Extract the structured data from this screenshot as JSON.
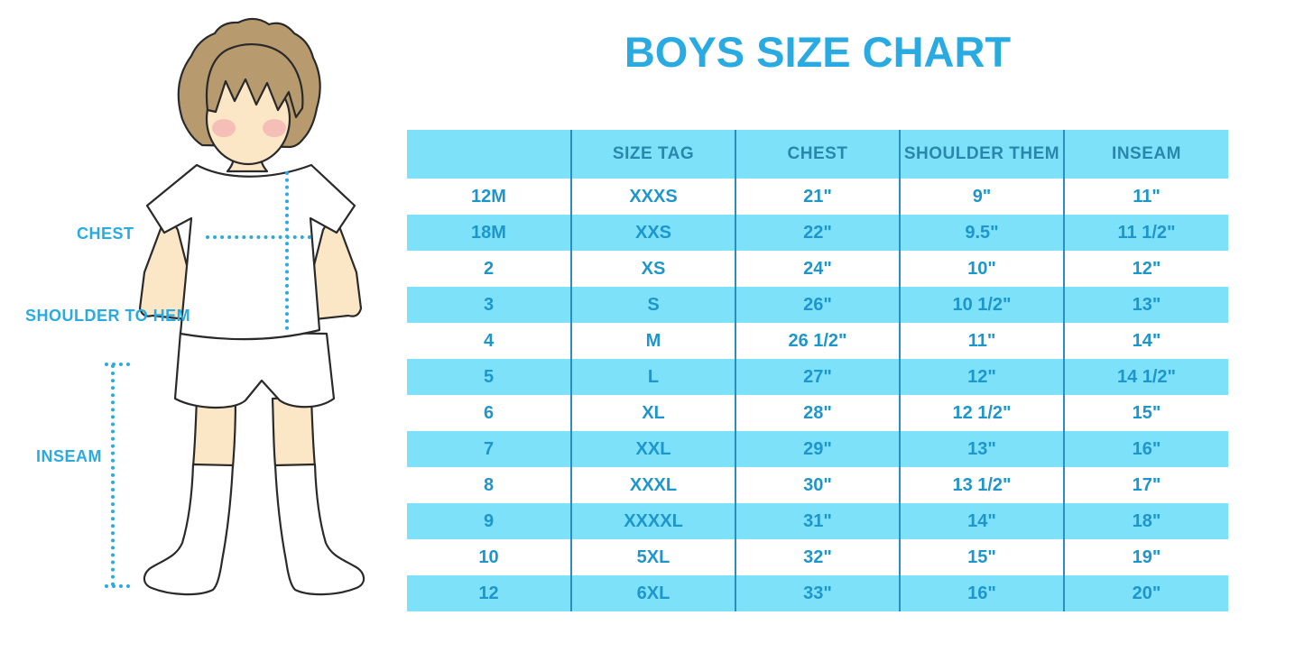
{
  "title": "BOYS SIZE CHART",
  "diagram": {
    "figure": "boy-illustration",
    "labels": {
      "chest": "CHEST",
      "shoulder_to_hem": "SHOULDER TO HEM",
      "inseam": "INSEAM"
    }
  },
  "chart_data": {
    "type": "table",
    "title": "BOYS SIZE CHART",
    "columns": [
      "",
      "SIZE TAG",
      "CHEST",
      "SHOULDER THEM",
      "INSEAM"
    ],
    "rows": [
      [
        "12M",
        "XXXS",
        "21\"",
        "9\"",
        "11\""
      ],
      [
        "18M",
        "XXS",
        "22\"",
        "9.5\"",
        "11 1/2\""
      ],
      [
        "2",
        "XS",
        "24\"",
        "10\"",
        "12\""
      ],
      [
        "3",
        "S",
        "26\"",
        "10 1/2\"",
        "13\""
      ],
      [
        "4",
        "M",
        "26 1/2\"",
        "11\"",
        "14\""
      ],
      [
        "5",
        "L",
        "27\"",
        "12\"",
        "14 1/2\""
      ],
      [
        "6",
        "XL",
        "28\"",
        "12 1/2\"",
        "15\""
      ],
      [
        "7",
        "XXL",
        "29\"",
        "13\"",
        "16\""
      ],
      [
        "8",
        "XXXL",
        "30\"",
        "13 1/2\"",
        "17\""
      ],
      [
        "9",
        "XXXXL",
        "31\"",
        "14\"",
        "18\""
      ],
      [
        "10",
        "5XL",
        "32\"",
        "15\"",
        "19\""
      ],
      [
        "12",
        "6XL",
        "33\"",
        "16\"",
        "20\""
      ]
    ],
    "layout_hints": {
      "striped_rows": "header and alternate rows highlighted",
      "grid": "vertical dividers only"
    }
  },
  "colors": {
    "accent": "#29ABE2",
    "stripe_bg": "#7CE1F9",
    "header_text": "#2A87AC",
    "cell_text": "#1E96CC",
    "column_divider": "#2A8FBE",
    "hair": "#B79B6E",
    "skin": "#FBE7C6",
    "blush": "#F2A4AC"
  }
}
